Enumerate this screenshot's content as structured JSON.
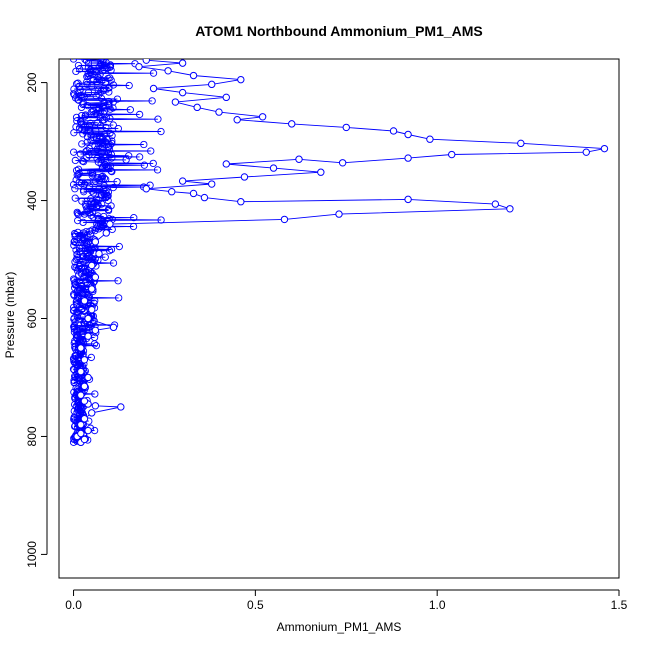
{
  "chart_data": {
    "type": "scatter",
    "title": "ATOM1 Northbound Ammonium_PM1_AMS",
    "xlabel": "Ammonium_PM1_AMS",
    "ylabel": "Pressure (mbar)",
    "xlim": [
      -0.04,
      1.5
    ],
    "ylim": [
      1040,
      160
    ],
    "y_reversed": true,
    "grid": false,
    "legend": "none",
    "x_ticks": [
      0.0,
      0.5,
      1.0,
      1.5
    ],
    "x_tick_labels": [
      "0.0",
      "0.5",
      "1.0",
      "1.5"
    ],
    "y_ticks": [
      200,
      400,
      600,
      800,
      1000
    ],
    "y_tick_labels": [
      "200",
      "400",
      "600",
      "800",
      "1000"
    ],
    "series": [
      {
        "color": "#0000ff",
        "marker": "open-circle",
        "connected": true,
        "points": [
          [
            0.02,
            810
          ],
          [
            0.03,
            805
          ],
          [
            0.01,
            800
          ],
          [
            0.02,
            795
          ],
          [
            0.04,
            790
          ],
          [
            0.02,
            780
          ],
          [
            0.03,
            770
          ],
          [
            0.05,
            760
          ],
          [
            0.13,
            750
          ],
          [
            0.06,
            748
          ],
          [
            0.04,
            745
          ],
          [
            0.03,
            740
          ],
          [
            0.02,
            730
          ],
          [
            0.03,
            715
          ],
          [
            0.04,
            700
          ],
          [
            0.02,
            690
          ],
          [
            0.03,
            670
          ],
          [
            0.02,
            650
          ],
          [
            0.04,
            630
          ],
          [
            0.06,
            620
          ],
          [
            0.11,
            615
          ],
          [
            0.04,
            600
          ],
          [
            0.05,
            585
          ],
          [
            0.03,
            570
          ],
          [
            0.05,
            550
          ],
          [
            0.06,
            530
          ],
          [
            0.05,
            510
          ],
          [
            0.07,
            490
          ],
          [
            0.06,
            470
          ],
          [
            0.09,
            455
          ],
          [
            0.1,
            440
          ],
          [
            0.58,
            432
          ],
          [
            0.73,
            423
          ],
          [
            1.2,
            414
          ],
          [
            1.16,
            406
          ],
          [
            0.92,
            398
          ],
          [
            0.46,
            402
          ],
          [
            0.36,
            395
          ],
          [
            0.33,
            388
          ],
          [
            0.27,
            385
          ],
          [
            0.2,
            380
          ],
          [
            0.38,
            372
          ],
          [
            0.3,
            367
          ],
          [
            0.47,
            360
          ],
          [
            0.68,
            352
          ],
          [
            0.55,
            345
          ],
          [
            0.42,
            338
          ],
          [
            0.62,
            330
          ],
          [
            0.74,
            336
          ],
          [
            0.92,
            328
          ],
          [
            1.04,
            322
          ],
          [
            1.41,
            318
          ],
          [
            1.46,
            312
          ],
          [
            1.23,
            303
          ],
          [
            0.98,
            296
          ],
          [
            0.92,
            288
          ],
          [
            0.88,
            282
          ],
          [
            0.75,
            276
          ],
          [
            0.6,
            270
          ],
          [
            0.45,
            263
          ],
          [
            0.52,
            258
          ],
          [
            0.4,
            250
          ],
          [
            0.34,
            242
          ],
          [
            0.28,
            233
          ],
          [
            0.42,
            225
          ],
          [
            0.3,
            217
          ],
          [
            0.22,
            210
          ],
          [
            0.38,
            203
          ],
          [
            0.46,
            195
          ],
          [
            0.33,
            188
          ],
          [
            0.26,
            180
          ],
          [
            0.18,
            173
          ],
          [
            0.3,
            167
          ],
          [
            0.2,
            162
          ]
        ]
      }
    ]
  }
}
